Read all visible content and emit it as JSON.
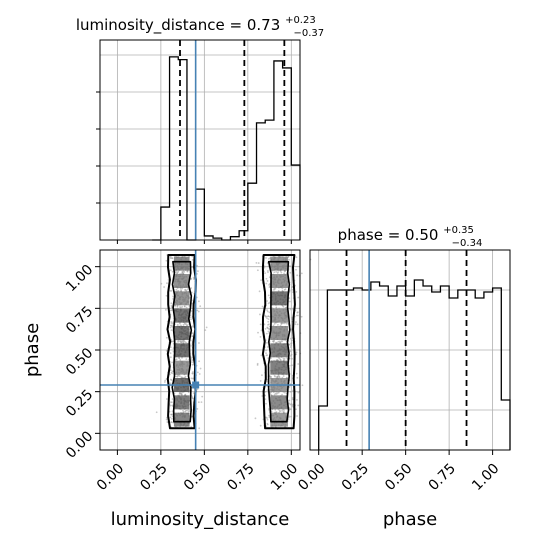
{
  "chart_data": {
    "type": "corner",
    "parameters": [
      "luminosity_distance",
      "phase"
    ],
    "truths": {
      "luminosity_distance": 0.45,
      "phase": 0.29
    },
    "colors": {
      "hist": "#000000",
      "truth": "#4682b4",
      "grid": "#b0b0b0",
      "quantile": "#000000"
    },
    "grid": true,
    "panels": {
      "ld_hist": {
        "title": {
          "base": "luminosity_distance = 0.73",
          "sup": "+0.23",
          "sub": "−0.37"
        },
        "quantiles": [
          0.36,
          0.73,
          0.96
        ],
        "xlim": [
          -0.1,
          1.05
        ],
        "ylim": [
          0,
          1000
        ],
        "bins": [
          [
            0.2,
            0.25,
            0
          ],
          [
            0.25,
            0.3,
            178
          ],
          [
            0.3,
            0.35,
            990
          ],
          [
            0.35,
            0.4,
            975
          ],
          [
            0.4,
            0.45,
            0
          ],
          [
            0.45,
            0.5,
            275
          ],
          [
            0.5,
            0.55,
            22
          ],
          [
            0.55,
            0.6,
            10
          ],
          [
            0.6,
            0.65,
            0
          ],
          [
            0.65,
            0.7,
            18
          ],
          [
            0.7,
            0.75,
            50
          ],
          [
            0.75,
            0.8,
            307
          ],
          [
            0.8,
            0.85,
            633
          ],
          [
            0.85,
            0.9,
            648
          ],
          [
            0.9,
            0.95,
            968
          ],
          [
            0.95,
            1.0,
            930
          ],
          [
            1.0,
            1.05,
            405
          ]
        ]
      },
      "phase_hist": {
        "title": {
          "base": "phase = 0.50",
          "sup": "+0.35",
          "sub": "−0.34"
        },
        "quantiles": [
          0.16,
          0.5,
          0.85
        ],
        "xlim": [
          -0.05,
          1.1
        ],
        "ylim": [
          0,
          1.0
        ],
        "ticks": [
          0.0,
          0.25,
          0.5,
          0.75,
          1.0
        ],
        "tick_labels": [
          "0.00",
          "0.25",
          "0.50",
          "0.75",
          "1.00"
        ],
        "xlabel": "phase",
        "bins": [
          [
            0.0,
            0.05,
            0.22
          ],
          [
            0.05,
            0.1,
            0.8
          ],
          [
            0.1,
            0.15,
            0.8
          ],
          [
            0.15,
            0.2,
            0.8
          ],
          [
            0.2,
            0.25,
            0.81
          ],
          [
            0.25,
            0.3,
            0.8
          ],
          [
            0.3,
            0.35,
            0.84
          ],
          [
            0.35,
            0.4,
            0.82
          ],
          [
            0.4,
            0.45,
            0.77
          ],
          [
            0.45,
            0.5,
            0.82
          ],
          [
            0.5,
            0.55,
            0.77
          ],
          [
            0.55,
            0.6,
            0.85
          ],
          [
            0.6,
            0.65,
            0.82
          ],
          [
            0.65,
            0.7,
            0.79
          ],
          [
            0.7,
            0.75,
            0.82
          ],
          [
            0.75,
            0.8,
            0.76
          ],
          [
            0.8,
            0.85,
            0.8
          ],
          [
            0.85,
            0.9,
            0.8
          ],
          [
            0.9,
            0.95,
            0.76
          ],
          [
            0.95,
            1.0,
            0.79
          ],
          [
            1.0,
            1.05,
            0.81
          ],
          [
            1.05,
            1.1,
            0.25
          ]
        ]
      },
      "joint": {
        "xlim": [
          -0.1,
          1.05
        ],
        "ylim": [
          -0.1,
          1.1
        ],
        "xticks": [
          0.0,
          0.25,
          0.5,
          0.75,
          1.0
        ],
        "xtick_labels": [
          "0.00",
          "0.25",
          "0.50",
          "0.75",
          "1.00"
        ],
        "yticks": [
          0.0,
          0.25,
          0.5,
          0.75,
          1.0
        ],
        "ytick_labels": [
          "0.00",
          "0.25",
          "0.50",
          "0.75",
          "1.00"
        ],
        "xlabel": "luminosity_distance",
        "ylabel": "phase",
        "clusters": [
          {
            "cx": 0.37,
            "halfwidth": 0.075,
            "ymin": 0.03,
            "ymax": 1.07
          },
          {
            "cx": 0.93,
            "halfwidth": 0.085,
            "ymin": 0.03,
            "ymax": 1.07
          }
        ]
      }
    }
  }
}
